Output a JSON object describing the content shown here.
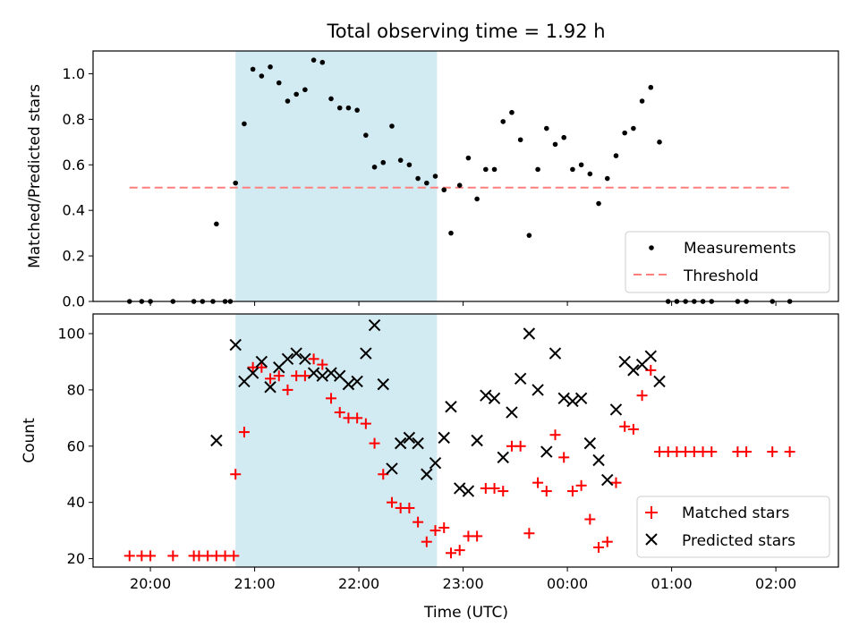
{
  "chart_data": {
    "type": "scatter",
    "title": "Total observing time = 1.92 h",
    "xlabel": "Time (UTC)",
    "x_ticks": [
      "20:00",
      "21:00",
      "22:00",
      "23:00",
      "00:00",
      "01:00",
      "02:00"
    ],
    "xlim": [
      "19:27",
      "02:36"
    ],
    "shaded_region": {
      "start": "20:49",
      "end": "22:45",
      "color": "#add8e6"
    },
    "panels": [
      {
        "ylabel": "Matched/Predicted stars",
        "ylim": [
          0,
          1.1
        ],
        "y_ticks": [
          "0.0",
          "0.2",
          "0.4",
          "0.6",
          "0.8",
          "1.0"
        ],
        "threshold": {
          "value": 0.5,
          "x_start": "19:48",
          "x_end": "02:09",
          "color": "#ff7f7f"
        },
        "legend": {
          "position": "lower right",
          "entries": [
            "Measurements",
            "Threshold"
          ]
        },
        "series": [
          {
            "name": "Measurements",
            "marker": "dot",
            "color": "#000000",
            "points": [
              [
                "19:48",
                0.0
              ],
              [
                "19:55",
                0.0
              ],
              [
                "20:00",
                0.0
              ],
              [
                "20:13",
                0.0
              ],
              [
                "20:25",
                0.0
              ],
              [
                "20:30",
                0.0
              ],
              [
                "20:36",
                0.0
              ],
              [
                "20:43",
                0.0
              ],
              [
                "20:46",
                0.0
              ],
              [
                "20:38",
                0.34
              ],
              [
                "20:49",
                0.52
              ],
              [
                "20:54",
                0.78
              ],
              [
                "20:59",
                1.02
              ],
              [
                "21:04",
                0.99
              ],
              [
                "21:09",
                1.03
              ],
              [
                "21:14",
                0.96
              ],
              [
                "21:19",
                0.88
              ],
              [
                "21:24",
                0.91
              ],
              [
                "21:29",
                0.93
              ],
              [
                "21:34",
                1.06
              ],
              [
                "21:39",
                1.05
              ],
              [
                "21:44",
                0.89
              ],
              [
                "21:49",
                0.85
              ],
              [
                "21:54",
                0.85
              ],
              [
                "21:59",
                0.84
              ],
              [
                "22:04",
                0.73
              ],
              [
                "22:09",
                0.59
              ],
              [
                "22:14",
                0.61
              ],
              [
                "22:19",
                0.77
              ],
              [
                "22:24",
                0.62
              ],
              [
                "22:29",
                0.6
              ],
              [
                "22:34",
                0.54
              ],
              [
                "22:39",
                0.52
              ],
              [
                "22:44",
                0.55
              ],
              [
                "22:49",
                0.49
              ],
              [
                "22:53",
                0.3
              ],
              [
                "22:58",
                0.51
              ],
              [
                "23:03",
                0.63
              ],
              [
                "23:08",
                0.45
              ],
              [
                "23:13",
                0.58
              ],
              [
                "23:18",
                0.58
              ],
              [
                "23:23",
                0.79
              ],
              [
                "23:28",
                0.83
              ],
              [
                "23:33",
                0.71
              ],
              [
                "23:38",
                0.29
              ],
              [
                "23:43",
                0.58
              ],
              [
                "23:48",
                0.76
              ],
              [
                "23:53",
                0.69
              ],
              [
                "23:58",
                0.72
              ],
              [
                "00:03",
                0.58
              ],
              [
                "00:08",
                0.6
              ],
              [
                "00:13",
                0.56
              ],
              [
                "00:18",
                0.43
              ],
              [
                "00:23",
                0.54
              ],
              [
                "00:28",
                0.64
              ],
              [
                "00:33",
                0.74
              ],
              [
                "00:38",
                0.76
              ],
              [
                "00:43",
                0.88
              ],
              [
                "00:48",
                0.94
              ],
              [
                "00:53",
                0.7
              ],
              [
                "00:58",
                0.0
              ],
              [
                "01:03",
                0.0
              ],
              [
                "01:08",
                0.0
              ],
              [
                "01:13",
                0.0
              ],
              [
                "01:18",
                0.0
              ],
              [
                "01:23",
                0.0
              ],
              [
                "01:38",
                0.0
              ],
              [
                "01:43",
                0.0
              ],
              [
                "01:58",
                0.0
              ],
              [
                "02:08",
                0.0
              ]
            ]
          }
        ]
      },
      {
        "ylabel": "Count",
        "ylim": [
          17,
          107
        ],
        "y_ticks": [
          "20",
          "40",
          "60",
          "80",
          "100"
        ],
        "legend": {
          "position": "lower right",
          "entries": [
            "Matched stars",
            "Predicted stars"
          ]
        },
        "series": [
          {
            "name": "Matched stars",
            "marker": "plus",
            "color": "#ff0000",
            "points": [
              [
                "19:48",
                21
              ],
              [
                "19:55",
                21
              ],
              [
                "20:00",
                21
              ],
              [
                "20:13",
                21
              ],
              [
                "20:25",
                21
              ],
              [
                "20:28",
                21
              ],
              [
                "20:33",
                21
              ],
              [
                "20:38",
                21
              ],
              [
                "20:43",
                21
              ],
              [
                "20:48",
                21
              ],
              [
                "20:49",
                50
              ],
              [
                "20:54",
                65
              ],
              [
                "20:59",
                88
              ],
              [
                "21:04",
                88
              ],
              [
                "21:09",
                84
              ],
              [
                "21:14",
                85
              ],
              [
                "21:19",
                80
              ],
              [
                "21:24",
                85
              ],
              [
                "21:29",
                85
              ],
              [
                "21:34",
                91
              ],
              [
                "21:39",
                89
              ],
              [
                "21:44",
                77
              ],
              [
                "21:49",
                72
              ],
              [
                "21:54",
                70
              ],
              [
                "21:59",
                70
              ],
              [
                "22:04",
                68
              ],
              [
                "22:09",
                61
              ],
              [
                "22:14",
                50
              ],
              [
                "22:19",
                40
              ],
              [
                "22:24",
                38
              ],
              [
                "22:29",
                38
              ],
              [
                "22:34",
                33
              ],
              [
                "22:39",
                26
              ],
              [
                "22:44",
                30
              ],
              [
                "22:49",
                31
              ],
              [
                "22:53",
                22
              ],
              [
                "22:58",
                23
              ],
              [
                "23:03",
                28
              ],
              [
                "23:08",
                28
              ],
              [
                "23:13",
                45
              ],
              [
                "23:18",
                45
              ],
              [
                "23:23",
                44
              ],
              [
                "23:28",
                60
              ],
              [
                "23:33",
                60
              ],
              [
                "23:38",
                29
              ],
              [
                "23:43",
                47
              ],
              [
                "23:48",
                44
              ],
              [
                "23:53",
                64
              ],
              [
                "23:58",
                56
              ],
              [
                "00:03",
                44
              ],
              [
                "00:08",
                46
              ],
              [
                "00:13",
                34
              ],
              [
                "00:18",
                24
              ],
              [
                "00:23",
                26
              ],
              [
                "00:28",
                47
              ],
              [
                "00:33",
                67
              ],
              [
                "00:38",
                66
              ],
              [
                "00:43",
                78
              ],
              [
                "00:48",
                87
              ],
              [
                "00:53",
                58
              ],
              [
                "00:58",
                58
              ],
              [
                "01:03",
                58
              ],
              [
                "01:08",
                58
              ],
              [
                "01:13",
                58
              ],
              [
                "01:18",
                58
              ],
              [
                "01:23",
                58
              ],
              [
                "01:38",
                58
              ],
              [
                "01:43",
                58
              ],
              [
                "01:58",
                58
              ],
              [
                "02:08",
                58
              ]
            ]
          },
          {
            "name": "Predicted stars",
            "marker": "x",
            "color": "#000000",
            "points": [
              [
                "20:38",
                62
              ],
              [
                "20:49",
                96
              ],
              [
                "20:54",
                83
              ],
              [
                "20:59",
                86
              ],
              [
                "21:04",
                90
              ],
              [
                "21:09",
                81
              ],
              [
                "21:14",
                88
              ],
              [
                "21:19",
                91
              ],
              [
                "21:24",
                93
              ],
              [
                "21:29",
                91
              ],
              [
                "21:34",
                86
              ],
              [
                "21:39",
                85
              ],
              [
                "21:44",
                86
              ],
              [
                "21:49",
                85
              ],
              [
                "21:54",
                82
              ],
              [
                "21:59",
                83
              ],
              [
                "22:04",
                93
              ],
              [
                "22:09",
                103
              ],
              [
                "22:14",
                82
              ],
              [
                "22:19",
                52
              ],
              [
                "22:24",
                61
              ],
              [
                "22:29",
                63
              ],
              [
                "22:34",
                61
              ],
              [
                "22:39",
                50
              ],
              [
                "22:44",
                54
              ],
              [
                "22:49",
                63
              ],
              [
                "22:53",
                74
              ],
              [
                "22:58",
                45
              ],
              [
                "23:03",
                44
              ],
              [
                "23:08",
                62
              ],
              [
                "23:13",
                78
              ],
              [
                "23:18",
                77
              ],
              [
                "23:23",
                56
              ],
              [
                "23:28",
                72
              ],
              [
                "23:33",
                84
              ],
              [
                "23:38",
                100
              ],
              [
                "23:43",
                80
              ],
              [
                "23:48",
                58
              ],
              [
                "23:53",
                93
              ],
              [
                "23:58",
                77
              ],
              [
                "00:03",
                76
              ],
              [
                "00:08",
                77
              ],
              [
                "00:13",
                61
              ],
              [
                "00:18",
                55
              ],
              [
                "00:23",
                48
              ],
              [
                "00:28",
                73
              ],
              [
                "00:33",
                90
              ],
              [
                "00:38",
                87
              ],
              [
                "00:43",
                89
              ],
              [
                "00:48",
                92
              ],
              [
                "00:53",
                83
              ]
            ]
          }
        ]
      }
    ]
  }
}
